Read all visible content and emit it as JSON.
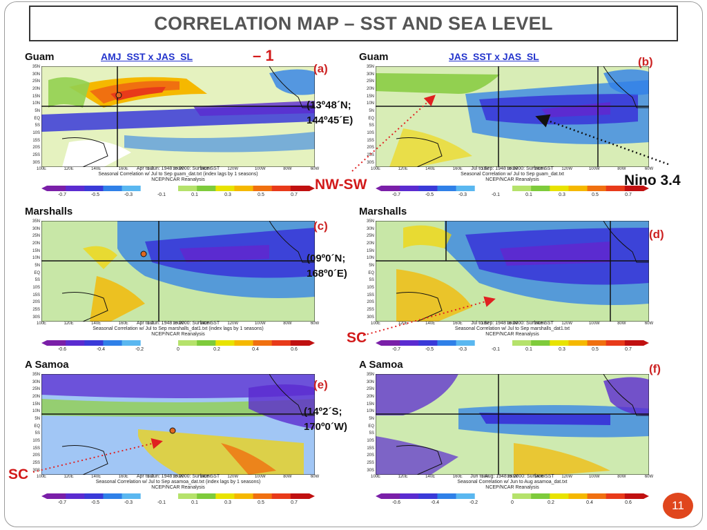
{
  "slide": {
    "title": "CORRELATION MAP – SST AND SEA LEVEL",
    "page_number": "11"
  },
  "colors": {
    "title_text": "#555555",
    "panel_letter": "#cc2222",
    "label_red": "#d21a1a",
    "panel_title_blue": "#2233cc",
    "page_badge": "#e0461d"
  },
  "lat_ticks": [
    "35N",
    "30N",
    "25N",
    "20N",
    "15N",
    "10N",
    "5N",
    "EQ",
    "5S",
    "10S",
    "15S",
    "20S",
    "25S",
    "30S"
  ],
  "lon_ticks": [
    "100E",
    "120E",
    "140E",
    "160E",
    "180",
    "160W",
    "140W",
    "120W",
    "100W",
    "80W",
    "60W"
  ],
  "panels": [
    {
      "letter": "(a)",
      "station": "Guam",
      "title": "AMJ_SST x JAS_SL",
      "caption_1": "Apr to Jun: 1948 to 2000: Surface SST",
      "caption_2": "Seasonal Correlation w/ Jul to Sep guam_dat.txt (index lags by 1 seasons)",
      "caption_3": "NCEP/NCAR Reanalysis",
      "colorbar_labels": [
        "-0.7",
        "-0.5",
        "-0.3",
        "-0.1",
        "0.1",
        "0.3",
        "0.5",
        "0.7"
      ]
    },
    {
      "letter": "(b)",
      "station": "Guam",
      "title": "JAS_SST x JAS_SL",
      "caption_1": "Jul to Sep: 1948 to 2000: Surface SST",
      "caption_2": "Seasonal Correlation w/ Jul to Sep guam_dat.txt",
      "caption_3": "NCEP/NCAR Reanalysis",
      "colorbar_labels": [
        "-0.7",
        "-0.5",
        "-0.3",
        "-0.1",
        "0.1",
        "0.3",
        "0.5",
        "0.7"
      ]
    },
    {
      "letter": "(c)",
      "station": "Marshalls",
      "title": "",
      "caption_1": "Apr to Jun: 1948 to 2000: Surface SST",
      "caption_2": "Seasonal Correlation w/ Jul to Sep marshalls_dat1.txt (index lags by 1 seasons)",
      "caption_3": "NCEP/NCAR Reanalysis",
      "colorbar_labels": [
        "-0.6",
        "-0.4",
        "-0.2",
        "0",
        "0.2",
        "0.4",
        "0.6"
      ]
    },
    {
      "letter": "(d)",
      "station": "Marshalls",
      "title": "",
      "caption_1": "Jul to Sep: 1948 to 2000: Surface SST",
      "caption_2": "Seasonal Correlation w/ Jul to Sep marshalls_dat1.txt",
      "caption_3": "NCEP/NCAR Reanalysis",
      "colorbar_labels": [
        "-0.7",
        "-0.5",
        "-0.3",
        "-0.1",
        "0.1",
        "0.3",
        "0.5",
        "0.7"
      ]
    },
    {
      "letter": "(e)",
      "station": "A Samoa",
      "title": "",
      "caption_1": "Apr to Jun: 1948 to 2000: Surface SST",
      "caption_2": "Seasonal Correlation w/ Jul to Sep asamoa_dat.txt (index lags by 1 seasons)",
      "caption_3": "NCEP/NCAR Reanalysis",
      "colorbar_labels": [
        "-0.7",
        "-0.5",
        "-0.3",
        "-0.1",
        "0.1",
        "0.3",
        "0.5",
        "0.7"
      ]
    },
    {
      "letter": "(f)",
      "station": "A Samoa",
      "title": "",
      "caption_1": "Jun to Aug: 1948 to 2000: Surface SST",
      "caption_2": "Seasonal Correlation w/ Jun to Aug asamoa_dat.txt",
      "caption_3": "NCEP/NCAR Reanalysis",
      "colorbar_labels": [
        "-0.6",
        "-0.4",
        "-0.2",
        "0",
        "0.2",
        "0.4",
        "0.6"
      ]
    }
  ],
  "annotations": {
    "minus_one": "– 1",
    "guam_coord_1": "(13º48´N;",
    "guam_coord_2": "144º45´E)",
    "marshalls_coord_1": "(09º0´N;",
    "marshalls_coord_2": "168º0´E)",
    "samoa_coord_1": "(14º2´S;",
    "samoa_coord_2": "170º0´W)",
    "nw_sw": "NW-SW",
    "nino": "Nino 3.4",
    "sc_d": "SC",
    "sc_e": "SC"
  }
}
